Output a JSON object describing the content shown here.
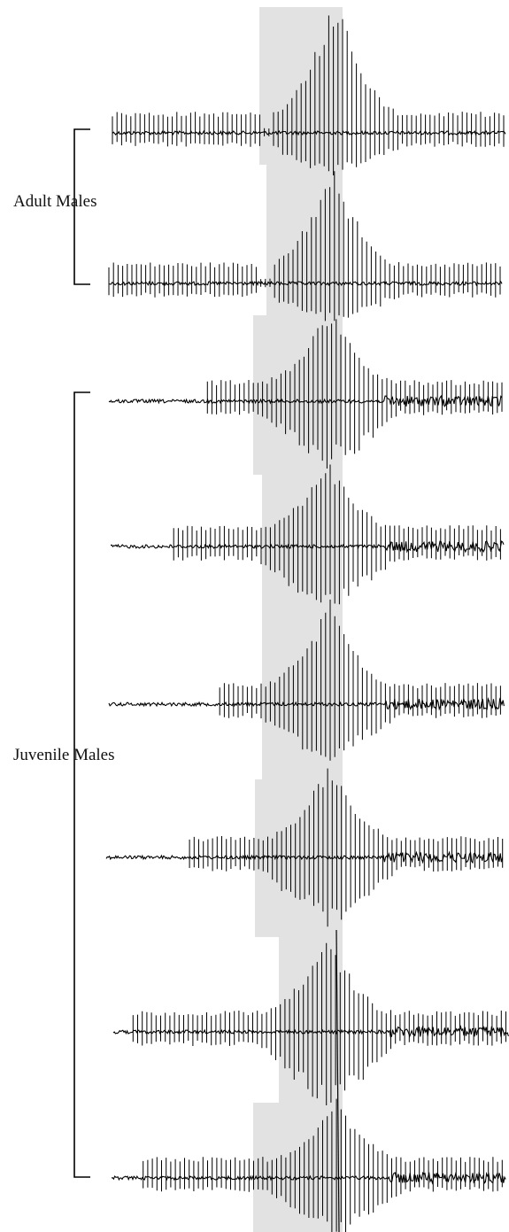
{
  "figure": {
    "groups": [
      {
        "label": "Adult Males",
        "trace_count": 2
      },
      {
        "label": "Juvenile Males",
        "trace_count": 6
      }
    ],
    "colors": {
      "trace": "#000000",
      "highlight": "#e2e2e2",
      "bracket": "#000000"
    },
    "traces": [
      {
        "group": "Adult Males",
        "signal_onset": 0.0
      },
      {
        "group": "Adult Males",
        "signal_onset": 0.0
      },
      {
        "group": "Juvenile Males",
        "signal_onset": 0.25
      },
      {
        "group": "Juvenile Males",
        "signal_onset": 0.16
      },
      {
        "group": "Juvenile Males",
        "signal_onset": 0.28
      },
      {
        "group": "Juvenile Males",
        "signal_onset": 0.21
      },
      {
        "group": "Juvenile Males",
        "signal_onset": 0.05
      },
      {
        "group": "Juvenile Males",
        "signal_onset": 0.08
      }
    ]
  }
}
